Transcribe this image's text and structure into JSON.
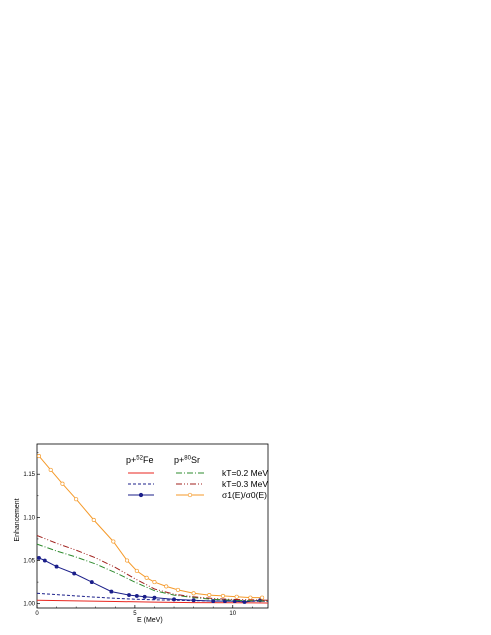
{
  "chart_data": {
    "type": "line",
    "xlabel": "E (MeV)",
    "ylabel": "Enhancement",
    "xlim": [
      0,
      11.8
    ],
    "ylim": [
      0.995,
      1.185
    ],
    "xticks": [
      0,
      5,
      10
    ],
    "xtick_labels": [
      "0",
      "5",
      "10"
    ],
    "yticks": [
      1.0,
      1.05,
      1.1,
      1.15
    ],
    "ytick_labels": [
      "1.00",
      "1.05",
      "1.10",
      "1.15"
    ],
    "legend": {
      "position": "top-right",
      "col_head_a_pre": "p+",
      "col_head_a_sup": "52",
      "col_head_a_post": "Fe",
      "col_head_b_pre": "p+",
      "col_head_b_sup": "80",
      "col_head_b_post": "Sr",
      "row1": "kT=0.2 MeV",
      "row2": "kT=0.3 MeV",
      "row3": "σ1(E)/σ0(E)"
    },
    "series": [
      {
        "key": "fe_kt02",
        "color": "#e8261f",
        "dash": "",
        "marker": "none",
        "x": [
          0,
          2,
          4,
          6,
          8,
          10,
          11.8
        ],
        "y": [
          1.004,
          1.0032,
          1.0025,
          1.0018,
          1.0013,
          1.001,
          1.0008
        ]
      },
      {
        "key": "fe_kt03",
        "color": "#1b1f8a",
        "dash": "3,2",
        "marker": "none",
        "x": [
          0,
          1,
          2,
          3,
          4,
          5,
          6,
          7,
          8,
          9,
          10,
          11.8
        ],
        "y": [
          1.012,
          1.0105,
          1.009,
          1.0075,
          1.0062,
          1.0052,
          1.0045,
          1.004,
          1.0035,
          1.0032,
          1.003,
          1.0028
        ]
      },
      {
        "key": "fe_ratio",
        "color": "#1b1f8a",
        "dash": "",
        "marker": "filled-circle",
        "x": [
          0.1,
          0.4,
          1.0,
          1.9,
          2.8,
          3.8,
          4.7,
          5.1,
          5.5,
          6.0,
          7.0,
          8.0,
          9.0,
          9.6,
          10.1,
          10.6,
          11.4
        ],
        "y": [
          1.053,
          1.05,
          1.043,
          1.035,
          1.025,
          1.014,
          1.01,
          1.009,
          1.008,
          1.007,
          1.005,
          1.004,
          1.003,
          1.003,
          1.003,
          1.002,
          1.004
        ]
      },
      {
        "key": "sr_kt02",
        "color": "#2e8b2e",
        "dash": "6,2,1,2",
        "marker": "none",
        "x": [
          0,
          1,
          2,
          3,
          4,
          5,
          5.5,
          6,
          7,
          8,
          9,
          10,
          11.8
        ],
        "y": [
          1.069,
          1.061,
          1.054,
          1.046,
          1.036,
          1.025,
          1.02,
          1.015,
          1.01,
          1.007,
          1.005,
          1.004,
          1.003
        ]
      },
      {
        "key": "sr_kt03",
        "color": "#a0201c",
        "dash": "6,2,1,2,1,2",
        "marker": "none",
        "x": [
          0,
          1,
          2,
          3,
          4,
          5,
          5.5,
          6,
          7,
          8,
          9,
          10,
          11.8
        ],
        "y": [
          1.079,
          1.07,
          1.062,
          1.053,
          1.042,
          1.029,
          1.023,
          1.017,
          1.011,
          1.008,
          1.006,
          1.005,
          1.004
        ]
      },
      {
        "key": "sr_ratio",
        "color": "#f59a2a",
        "dash": "",
        "marker": "open-circle",
        "x": [
          0.1,
          0.7,
          1.3,
          2.0,
          2.9,
          3.9,
          4.6,
          5.1,
          5.6,
          6.0,
          6.6,
          7.2,
          8.0,
          8.8,
          9.5,
          10.2,
          10.9,
          11.5
        ],
        "y": [
          1.171,
          1.155,
          1.139,
          1.121,
          1.097,
          1.072,
          1.05,
          1.038,
          1.03,
          1.025,
          1.02,
          1.016,
          1.012,
          1.01,
          1.009,
          1.008,
          1.007,
          1.007
        ]
      }
    ]
  }
}
